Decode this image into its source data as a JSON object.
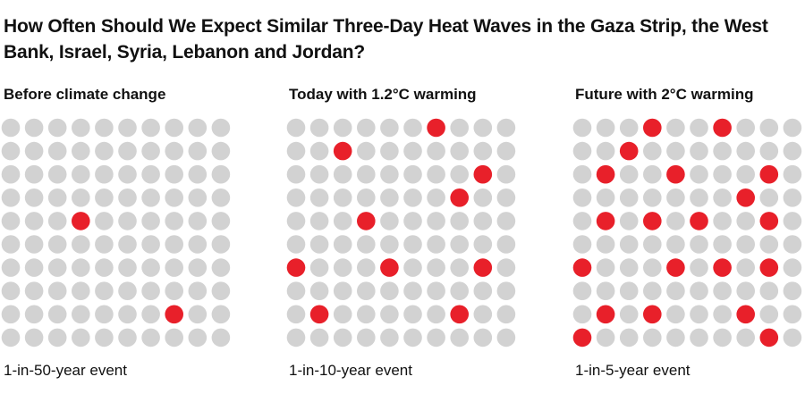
{
  "title": "How Often Should We Expect Similar Three-Day Heat Waves in the Gaza Strip, the West Bank, Israel, Syria, Lebanon and Jordan?",
  "colors": {
    "event": "#e8202a",
    "no_event": "#d2d2d2",
    "text": "#111111"
  },
  "chart_data": [
    {
      "type": "waffle",
      "title": "Before climate change",
      "caption": "1-in-50-year event",
      "rows": 10,
      "cols": 10,
      "total_years": 100,
      "highlighted_count": 2,
      "highlighted_cells": [
        [
          4,
          3
        ],
        [
          8,
          7
        ]
      ]
    },
    {
      "type": "waffle",
      "title": "Today with 1.2°C warming",
      "caption": "1-in-10-year event",
      "rows": 10,
      "cols": 10,
      "total_years": 100,
      "highlighted_count": 10,
      "highlighted_cells": [
        [
          0,
          6
        ],
        [
          1,
          2
        ],
        [
          2,
          8
        ],
        [
          3,
          7
        ],
        [
          4,
          3
        ],
        [
          6,
          0
        ],
        [
          6,
          4
        ],
        [
          6,
          8
        ],
        [
          8,
          1
        ],
        [
          8,
          7
        ]
      ]
    },
    {
      "type": "waffle",
      "title": "Future with 2°C warming",
      "caption": "1-in-5-year event",
      "rows": 10,
      "cols": 10,
      "total_years": 100,
      "highlighted_count": 20,
      "highlighted_cells": [
        [
          0,
          3
        ],
        [
          0,
          6
        ],
        [
          1,
          2
        ],
        [
          2,
          1
        ],
        [
          2,
          4
        ],
        [
          2,
          8
        ],
        [
          3,
          7
        ],
        [
          4,
          1
        ],
        [
          4,
          3
        ],
        [
          4,
          5
        ],
        [
          4,
          8
        ],
        [
          6,
          0
        ],
        [
          6,
          4
        ],
        [
          6,
          6
        ],
        [
          6,
          8
        ],
        [
          8,
          1
        ],
        [
          8,
          3
        ],
        [
          8,
          7
        ],
        [
          9,
          0
        ],
        [
          9,
          8
        ]
      ]
    }
  ]
}
